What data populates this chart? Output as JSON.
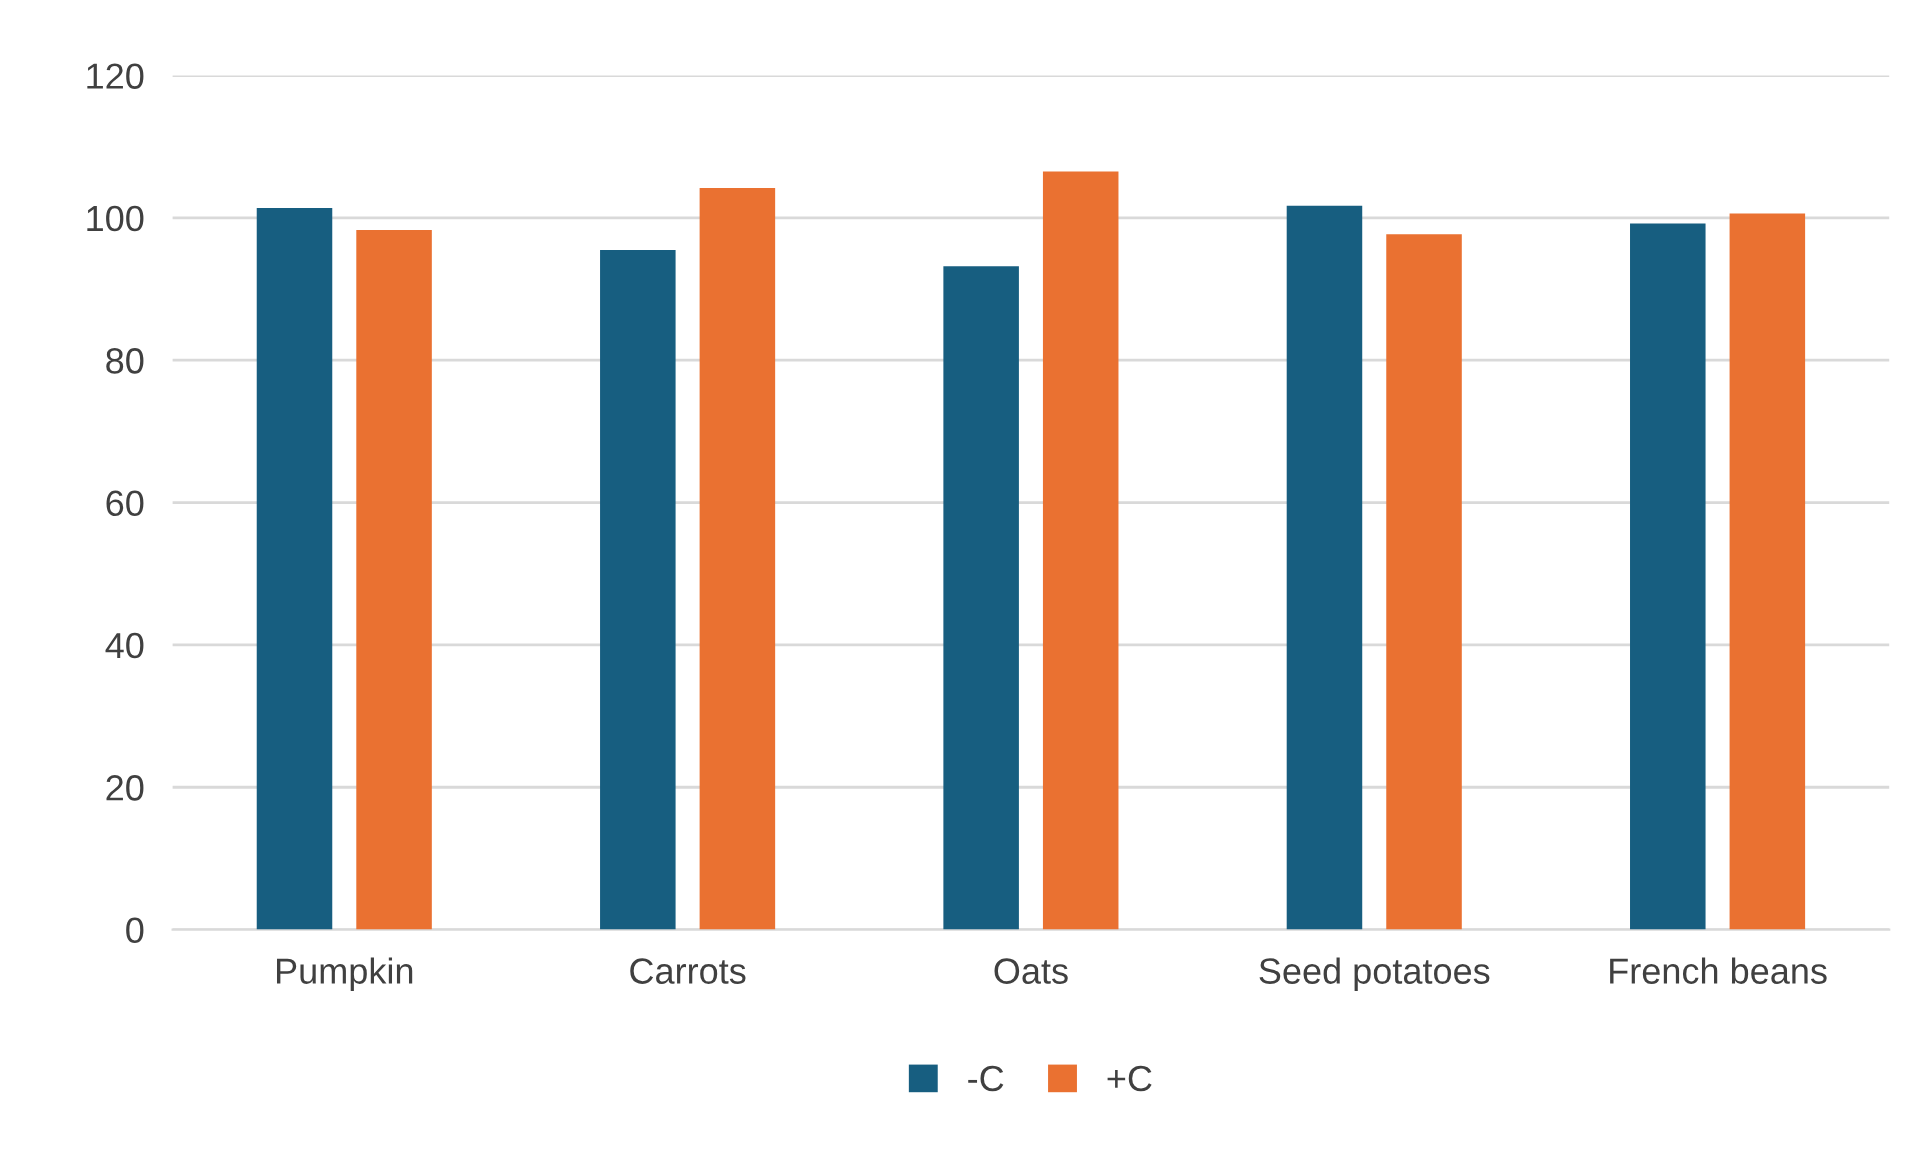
{
  "chart_data": {
    "type": "bar",
    "categories": [
      "Pumpkin",
      "Carrots",
      "Oats",
      "Seed potatoes",
      "French beans"
    ],
    "series": [
      {
        "name": "-C",
        "color": "#175e80",
        "values": [
          101.4,
          95.5,
          93.2,
          101.7,
          99.2
        ]
      },
      {
        "name": "+C",
        "color": "#ea7131",
        "values": [
          98.3,
          104.2,
          106.5,
          97.7,
          100.6
        ]
      }
    ],
    "ylim": [
      0,
      120
    ],
    "yticks": [
      0,
      20,
      40,
      60,
      80,
      100,
      120
    ],
    "grid": "y",
    "legend": "bottom"
  }
}
